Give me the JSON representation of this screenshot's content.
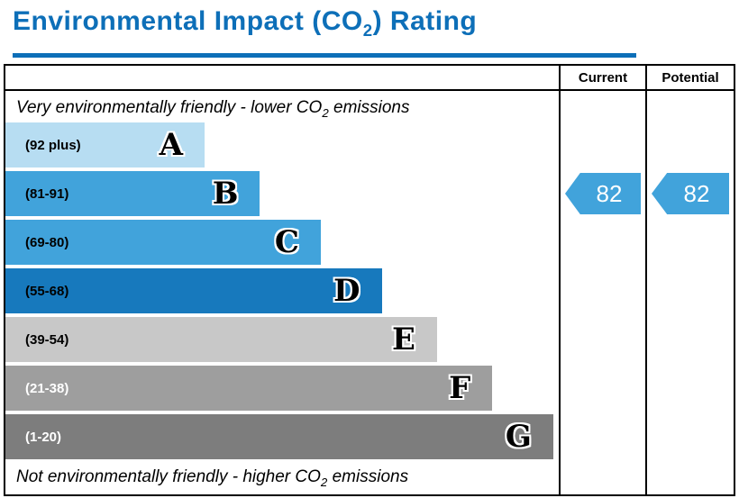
{
  "title": {
    "before_sub": "Environmental Impact (CO",
    "sub": "2",
    "after_sub": ") Rating"
  },
  "colors": {
    "title": "#0d6fb8",
    "arrow": "#41a3db",
    "border": "#000000"
  },
  "header": {
    "current": "Current",
    "potential": "Potential"
  },
  "captions": {
    "top_before": "Very environmentally friendly - lower CO",
    "top_sub": "2",
    "top_after": " emissions",
    "bottom_before": "Not environmentally friendly - higher CO",
    "bottom_sub": "2",
    "bottom_after": " emissions"
  },
  "bands": [
    {
      "letter": "A",
      "range": "(92 plus)",
      "color": "#b7ddf2",
      "width_pct": 36,
      "label_color": "#000000"
    },
    {
      "letter": "B",
      "range": "(81-91)",
      "color": "#41a3db",
      "width_pct": 46,
      "label_color": "#000000"
    },
    {
      "letter": "C",
      "range": "(69-80)",
      "color": "#41a3db",
      "width_pct": 57,
      "label_color": "#000000"
    },
    {
      "letter": "D",
      "range": "(55-68)",
      "color": "#1779bd",
      "width_pct": 68,
      "label_color": "#000000"
    },
    {
      "letter": "E",
      "range": "(39-54)",
      "color": "#c8c8c8",
      "width_pct": 78,
      "label_color": "#000000"
    },
    {
      "letter": "F",
      "range": "(21-38)",
      "color": "#9e9e9e",
      "width_pct": 88,
      "label_color": "#ffffff"
    },
    {
      "letter": "G",
      "range": "(1-20)",
      "color": "#7d7d7d",
      "width_pct": 99,
      "label_color": "#ffffff"
    }
  ],
  "ratings": {
    "current": "82",
    "potential": "82"
  },
  "chart_data": {
    "type": "bar",
    "title": "Environmental Impact (CO2) Rating",
    "orientation": "horizontal",
    "categories": [
      "A (92 plus)",
      "B (81-91)",
      "C (69-80)",
      "D (55-68)",
      "E (39-54)",
      "F (21-38)",
      "G (1-20)"
    ],
    "values": [
      36,
      46,
      57,
      68,
      78,
      88,
      99
    ],
    "value_unit": "relative bar width percent",
    "top_label": "Very environmentally friendly - lower CO2 emissions",
    "bottom_label": "Not environmentally friendly - higher CO2 emissions",
    "annotations": {
      "current_rating": 82,
      "current_band": "B",
      "potential_rating": 82,
      "potential_band": "B"
    },
    "legend_position": "none",
    "grid": false
  }
}
